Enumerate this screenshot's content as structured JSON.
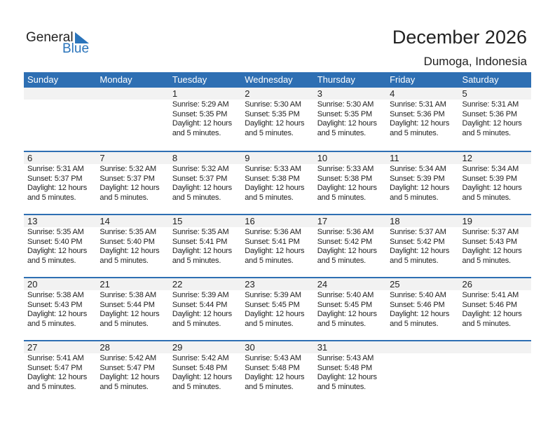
{
  "logo": {
    "word1": "General",
    "word2": "Blue",
    "accent": "#2a74bb"
  },
  "header": {
    "title": "December 2026",
    "location": "Dumoga, Indonesia"
  },
  "colors": {
    "header_bg": "#2e6fb3",
    "date_band": "#f2f2f2"
  },
  "days": [
    "Sunday",
    "Monday",
    "Tuesday",
    "Wednesday",
    "Thursday",
    "Friday",
    "Saturday"
  ],
  "daylight_line1": "Daylight: 12 hours",
  "daylight_line2": "and 5 minutes.",
  "weeks": [
    [
      null,
      null,
      {
        "day": "1",
        "sunrise": "Sunrise: 5:29 AM",
        "sunset": "Sunset: 5:35 PM"
      },
      {
        "day": "2",
        "sunrise": "Sunrise: 5:30 AM",
        "sunset": "Sunset: 5:35 PM"
      },
      {
        "day": "3",
        "sunrise": "Sunrise: 5:30 AM",
        "sunset": "Sunset: 5:35 PM"
      },
      {
        "day": "4",
        "sunrise": "Sunrise: 5:31 AM",
        "sunset": "Sunset: 5:36 PM"
      },
      {
        "day": "5",
        "sunrise": "Sunrise: 5:31 AM",
        "sunset": "Sunset: 5:36 PM"
      }
    ],
    [
      {
        "day": "6",
        "sunrise": "Sunrise: 5:31 AM",
        "sunset": "Sunset: 5:37 PM"
      },
      {
        "day": "7",
        "sunrise": "Sunrise: 5:32 AM",
        "sunset": "Sunset: 5:37 PM"
      },
      {
        "day": "8",
        "sunrise": "Sunrise: 5:32 AM",
        "sunset": "Sunset: 5:37 PM"
      },
      {
        "day": "9",
        "sunrise": "Sunrise: 5:33 AM",
        "sunset": "Sunset: 5:38 PM"
      },
      {
        "day": "10",
        "sunrise": "Sunrise: 5:33 AM",
        "sunset": "Sunset: 5:38 PM"
      },
      {
        "day": "11",
        "sunrise": "Sunrise: 5:34 AM",
        "sunset": "Sunset: 5:39 PM"
      },
      {
        "day": "12",
        "sunrise": "Sunrise: 5:34 AM",
        "sunset": "Sunset: 5:39 PM"
      }
    ],
    [
      {
        "day": "13",
        "sunrise": "Sunrise: 5:35 AM",
        "sunset": "Sunset: 5:40 PM"
      },
      {
        "day": "14",
        "sunrise": "Sunrise: 5:35 AM",
        "sunset": "Sunset: 5:40 PM"
      },
      {
        "day": "15",
        "sunrise": "Sunrise: 5:35 AM",
        "sunset": "Sunset: 5:41 PM"
      },
      {
        "day": "16",
        "sunrise": "Sunrise: 5:36 AM",
        "sunset": "Sunset: 5:41 PM"
      },
      {
        "day": "17",
        "sunrise": "Sunrise: 5:36 AM",
        "sunset": "Sunset: 5:42 PM"
      },
      {
        "day": "18",
        "sunrise": "Sunrise: 5:37 AM",
        "sunset": "Sunset: 5:42 PM"
      },
      {
        "day": "19",
        "sunrise": "Sunrise: 5:37 AM",
        "sunset": "Sunset: 5:43 PM"
      }
    ],
    [
      {
        "day": "20",
        "sunrise": "Sunrise: 5:38 AM",
        "sunset": "Sunset: 5:43 PM"
      },
      {
        "day": "21",
        "sunrise": "Sunrise: 5:38 AM",
        "sunset": "Sunset: 5:44 PM"
      },
      {
        "day": "22",
        "sunrise": "Sunrise: 5:39 AM",
        "sunset": "Sunset: 5:44 PM"
      },
      {
        "day": "23",
        "sunrise": "Sunrise: 5:39 AM",
        "sunset": "Sunset: 5:45 PM"
      },
      {
        "day": "24",
        "sunrise": "Sunrise: 5:40 AM",
        "sunset": "Sunset: 5:45 PM"
      },
      {
        "day": "25",
        "sunrise": "Sunrise: 5:40 AM",
        "sunset": "Sunset: 5:46 PM"
      },
      {
        "day": "26",
        "sunrise": "Sunrise: 5:41 AM",
        "sunset": "Sunset: 5:46 PM"
      }
    ],
    [
      {
        "day": "27",
        "sunrise": "Sunrise: 5:41 AM",
        "sunset": "Sunset: 5:47 PM"
      },
      {
        "day": "28",
        "sunrise": "Sunrise: 5:42 AM",
        "sunset": "Sunset: 5:47 PM"
      },
      {
        "day": "29",
        "sunrise": "Sunrise: 5:42 AM",
        "sunset": "Sunset: 5:48 PM"
      },
      {
        "day": "30",
        "sunrise": "Sunrise: 5:43 AM",
        "sunset": "Sunset: 5:48 PM"
      },
      {
        "day": "31",
        "sunrise": "Sunrise: 5:43 AM",
        "sunset": "Sunset: 5:48 PM"
      },
      null,
      null
    ]
  ]
}
